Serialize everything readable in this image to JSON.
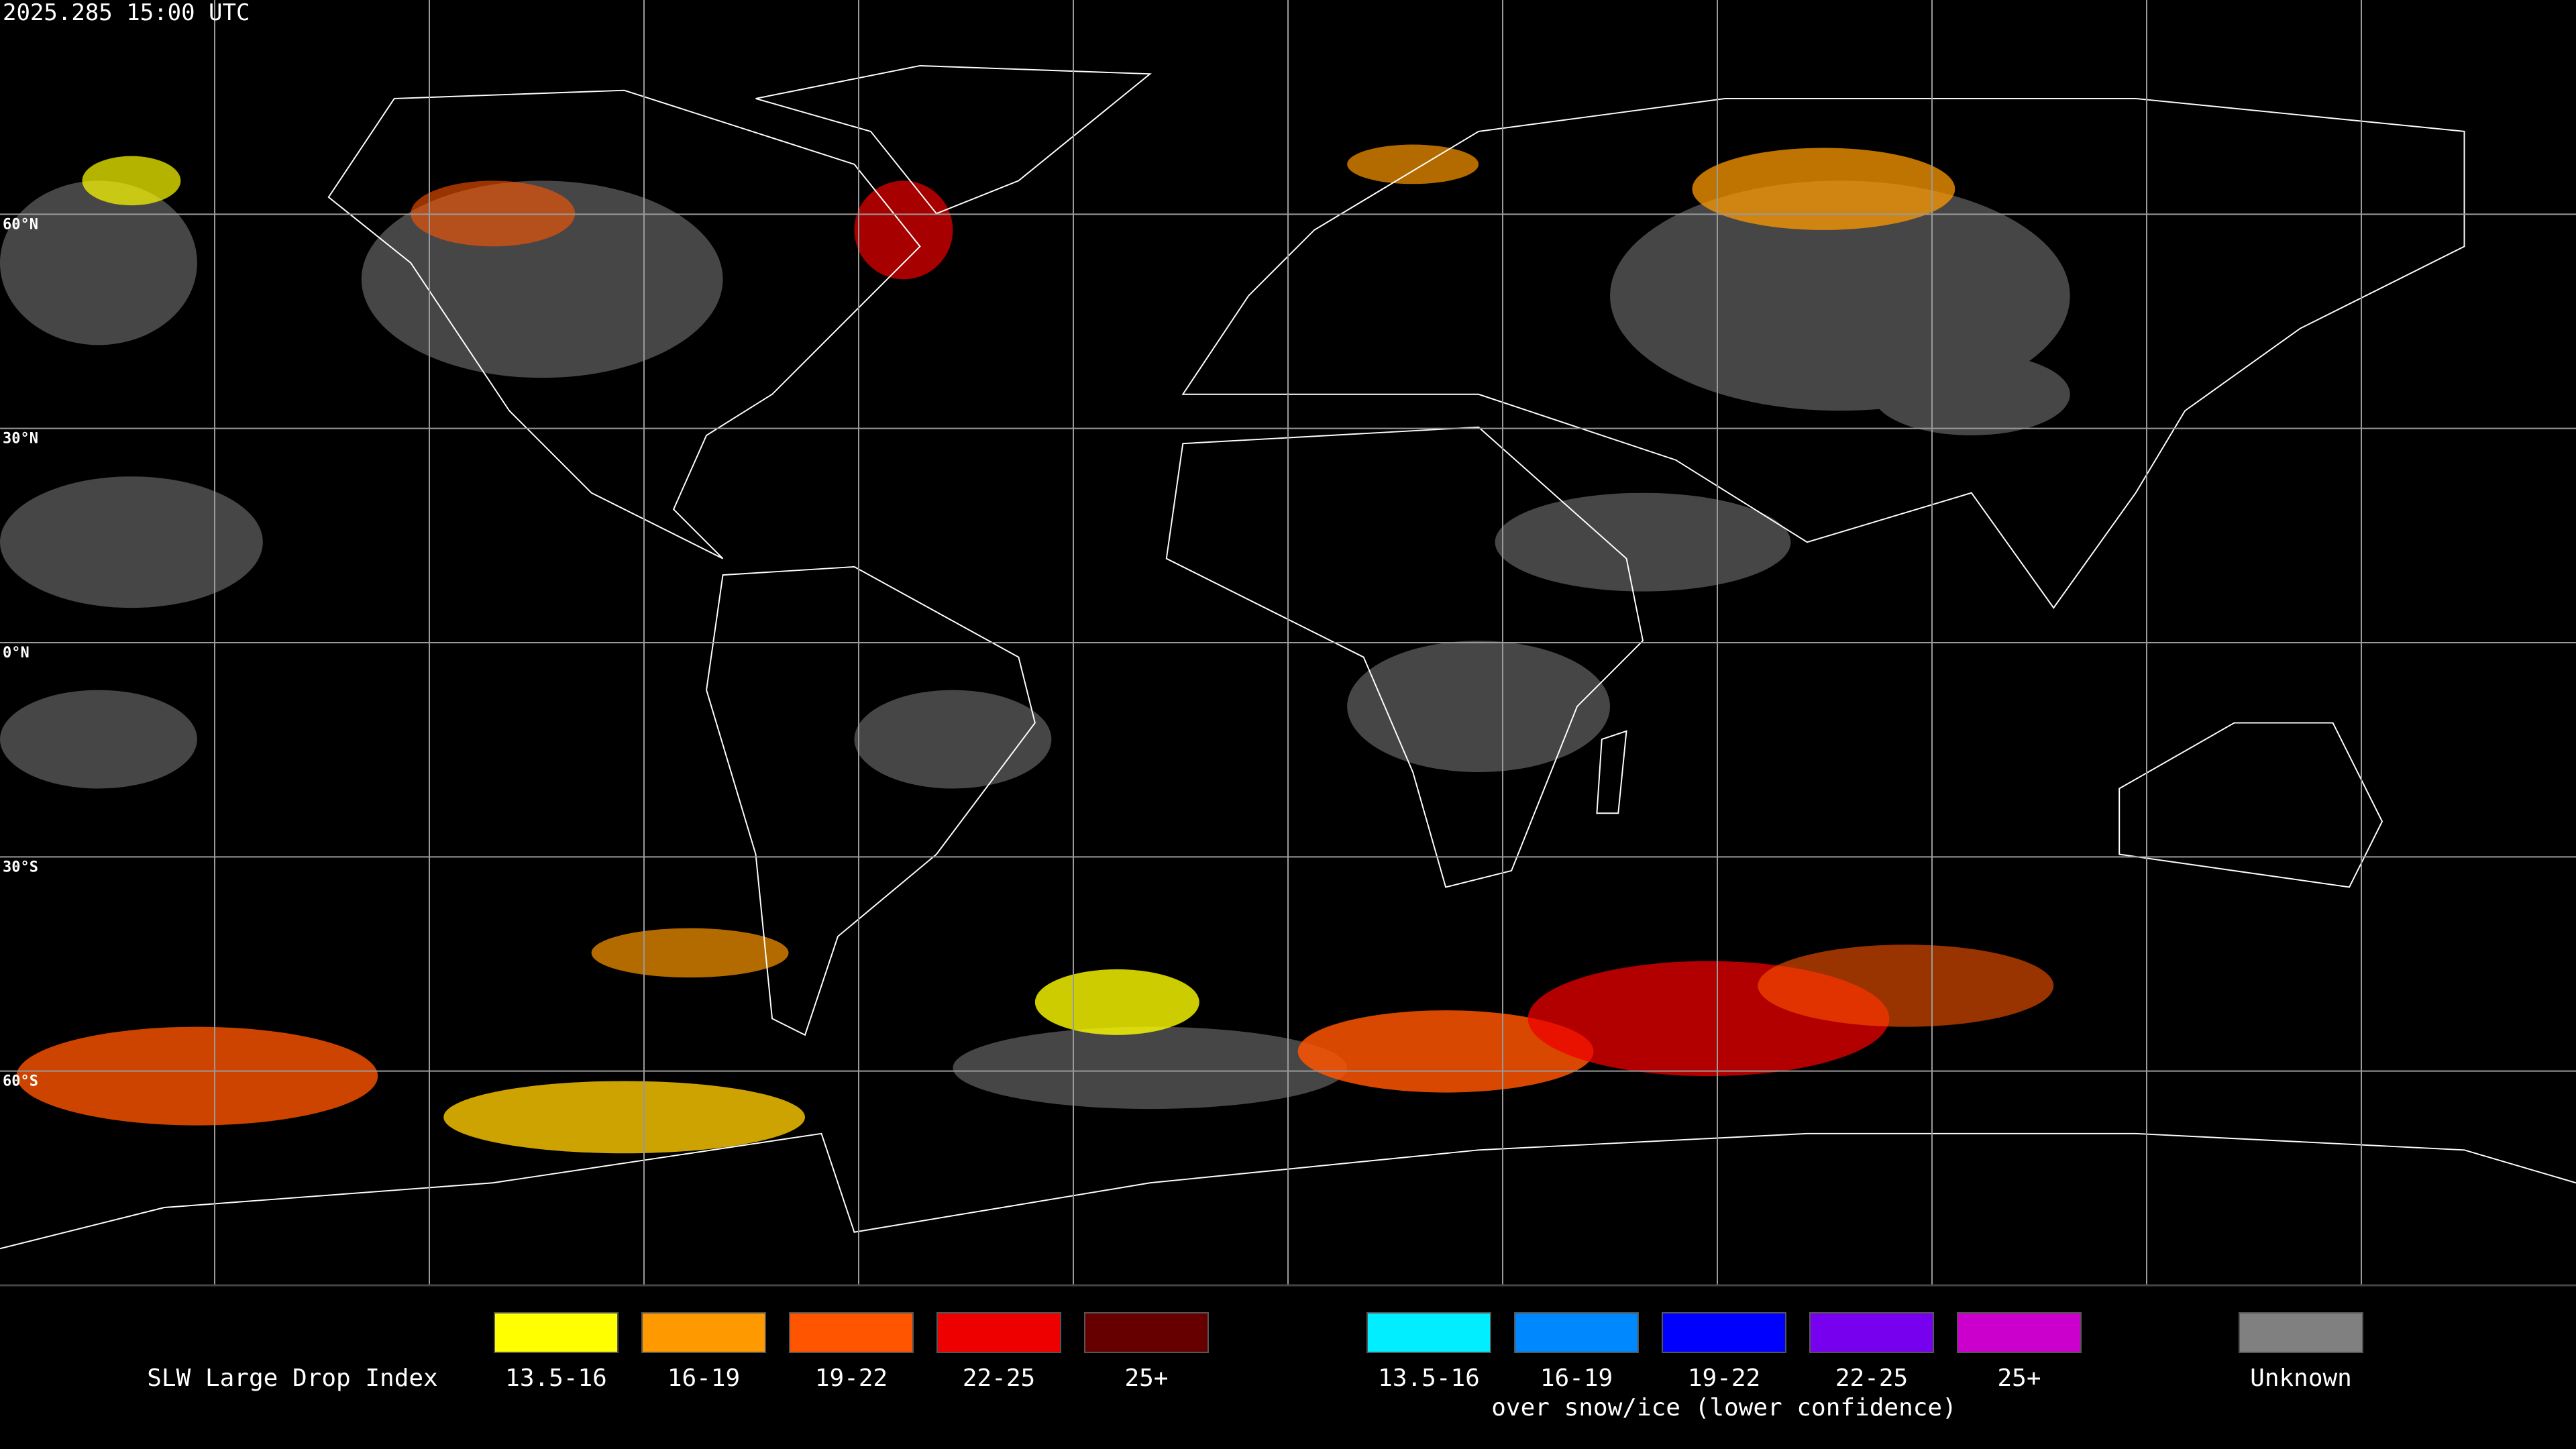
{
  "header": {
    "timestamp": "2025.285 15:00 UTC"
  },
  "map": {
    "latitude_labels": [
      "60°N",
      "30°N",
      "0°N",
      "30°S",
      "60°S"
    ]
  },
  "legend": {
    "title": "SLW Large Drop Index",
    "groups": [
      {
        "items": [
          {
            "label": "13.5-16",
            "color": "#ffff00"
          },
          {
            "label": "16-19",
            "color": "#ff9900"
          },
          {
            "label": "19-22",
            "color": "#ff5500"
          },
          {
            "label": "22-25",
            "color": "#ee0000"
          },
          {
            "label": "25+",
            "color": "#660000"
          }
        ]
      },
      {
        "items": [
          {
            "label": "13.5-16",
            "color": "#00eeff"
          },
          {
            "label": "16-19",
            "color": "#0088ff"
          },
          {
            "label": "19-22",
            "color": "#0000ff"
          },
          {
            "label": "22-25",
            "color": "#7700ee"
          },
          {
            "label": "25+",
            "color": "#cc00cc"
          }
        ],
        "note": "over snow/ice (lower confidence)"
      },
      {
        "items": [
          {
            "label": "Unknown",
            "color": "#808080"
          }
        ]
      }
    ]
  }
}
